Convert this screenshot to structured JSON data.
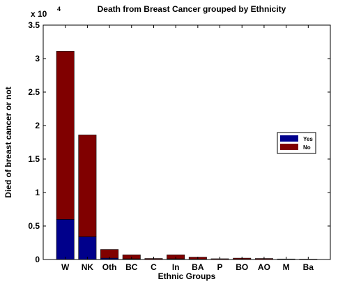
{
  "chart_data": {
    "type": "bar",
    "stacked": true,
    "title": "Death from Breast Cancer grouped by  Ethnicity",
    "xlabel": "Ethnic Groups",
    "ylabel": "Died of breast cancer or not",
    "y_multiplier": {
      "base": "x 10",
      "exponent": "4"
    },
    "categories": [
      "W",
      "NK",
      "Oth",
      "BC",
      "C",
      "In",
      "BA",
      "P",
      "BO",
      "AO",
      "M",
      "Ba"
    ],
    "series": [
      {
        "name": "Yes",
        "color": "#00008B",
        "values": [
          0.6,
          0.34,
          0.02,
          0.01,
          0.003,
          0.01,
          0.005,
          0.002,
          0.003,
          0.002,
          0.001,
          0.001
        ]
      },
      {
        "name": "No",
        "color": "#800000",
        "values": [
          2.51,
          1.52,
          0.13,
          0.06,
          0.012,
          0.06,
          0.03,
          0.009,
          0.017,
          0.013,
          0.007,
          0.005
        ]
      }
    ],
    "ylim": [
      0,
      3.5
    ],
    "yticks": [
      "0",
      "0.5",
      "1",
      "1.5",
      "2",
      "2.5",
      "3",
      "3.5"
    ],
    "ytick_values": [
      0,
      0.5,
      1,
      1.5,
      2,
      2.5,
      3,
      3.5
    ],
    "xlim": [
      0,
      13
    ],
    "grid": false,
    "legend_placement": "right"
  }
}
